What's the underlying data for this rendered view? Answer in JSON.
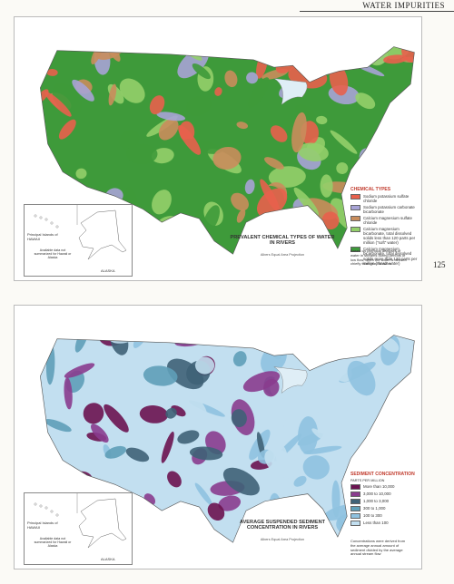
{
  "header": {
    "title": "WATER IMPURITIES",
    "page_number": "125"
  },
  "maps": [
    {
      "title": "PREVALENT CHEMICAL TYPES OF WATER IN RIVERS",
      "projection": "Albers Equal Area Projection",
      "legend": {
        "title": "CHEMICAL TYPES",
        "items": [
          {
            "label": "Sodium potassium sulfate chloride",
            "color": "#e8604c"
          },
          {
            "label": "Sodium potassium carbonate bicarbonate",
            "color": "#a7a3d6"
          },
          {
            "label": "Calcium magnesium sulfate chloride",
            "color": "#c98d5c"
          },
          {
            "label": "Calcium magnesium bicarbonate, total dissolved solids less than 120 parts per million (\"soft\" water)",
            "color": "#93cf6a"
          },
          {
            "label": "Calcium magnesium bicarbonate, total dissolved solids more than 120 parts per million (\"hard\" water)",
            "color": "#3e9a3a"
          }
        ]
      },
      "note": "Based on chemical analyses of water in streams during periods of low flow, when the water is derived chiefly from ground water",
      "inset": {
        "hawaii": "Principal Islands of HAWAII",
        "no_data": "Available data not summarized for Hawaii or Alaska",
        "alaska": "ALASKA"
      }
    },
    {
      "title": "AVERAGE SUSPENDED SEDIMENT CONCENTRATION IN RIVERS",
      "projection": "Albers Equal Area Projection",
      "legend": {
        "title": "SEDIMENT CONCENTRATION",
        "subtitle": "PARTS PER MILLION",
        "items": [
          {
            "label": "More than 10,000",
            "color": "#6b1350"
          },
          {
            "label": "3,000 to 10,000",
            "color": "#8a3c8e"
          },
          {
            "label": "1,000 to 3,000",
            "color": "#3f6277"
          },
          {
            "label": "300 to 1,000",
            "color": "#5f9fb8"
          },
          {
            "label": "100 to 300",
            "color": "#8fc2e0"
          },
          {
            "label": "Less than 100",
            "color": "#c2dff0"
          }
        ]
      },
      "note": "Concentrations were derived from the average annual amount of sediment divided by the average annual stream flow",
      "inset": {
        "hawaii": "Principal Islands of HAWAII",
        "no_data": "Available data not summarized for Hawaii or Alaska",
        "alaska": "ALASKA"
      }
    }
  ]
}
